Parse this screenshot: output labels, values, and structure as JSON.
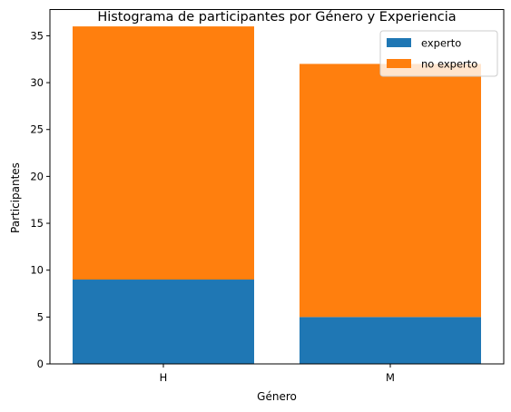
{
  "chart_data": {
    "type": "bar",
    "stacked": true,
    "title": "Histograma de participantes por Género y Experiencia",
    "xlabel": "Género",
    "ylabel": "Participantes",
    "categories": [
      "H",
      "M"
    ],
    "series": [
      {
        "name": "experto",
        "values": [
          9,
          5
        ],
        "color": "#1f77b4"
      },
      {
        "name": "no experto",
        "values": [
          27,
          27
        ],
        "color": "#ff7f0e"
      }
    ],
    "ylim": [
      0,
      37.8
    ],
    "yticks": [
      0,
      5,
      10,
      15,
      20,
      25,
      30,
      35
    ],
    "grid": false,
    "legend_position": "top-right"
  }
}
